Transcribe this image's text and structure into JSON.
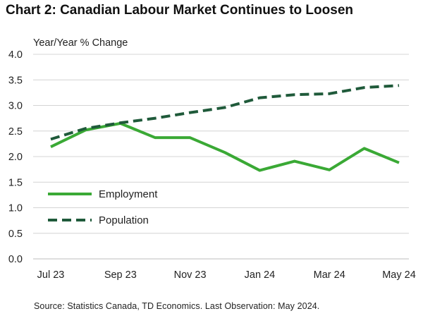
{
  "title": "Chart 2: Canadian Labour Market Continues to Loosen",
  "source": "Source: Statistics Canada, TD Economics. Last Observation: May 2024.",
  "chart_data": {
    "type": "line",
    "title": "Chart 2: Canadian Labour Market Continues to Loosen",
    "ylabel": "Year/Year % Change",
    "xlabel": "",
    "ylim": [
      0,
      4
    ],
    "y_ticks": [
      "0.0",
      "0.5",
      "1.0",
      "1.5",
      "2.0",
      "2.5",
      "3.0",
      "3.5",
      "4.0"
    ],
    "x": [
      "Jul 23",
      "Aug 23",
      "Sep 23",
      "Oct 23",
      "Nov 23",
      "Dec 23",
      "Jan 24",
      "Feb 24",
      "Mar 24",
      "Apr 24",
      "May 24"
    ],
    "x_tick_labels": [
      "Jul 23",
      "Sep 23",
      "Nov 23",
      "Jan 24",
      "Mar 24",
      "May 24"
    ],
    "grid": "horizontal",
    "legend_position": "lower-left",
    "series": [
      {
        "name": "Employment",
        "style": "solid",
        "color": "#3aa935",
        "values": [
          2.19,
          2.52,
          2.65,
          2.37,
          2.37,
          2.08,
          1.73,
          1.91,
          1.74,
          2.16,
          1.88
        ]
      },
      {
        "name": "Population",
        "style": "dashed",
        "color": "#1f5a3a",
        "values": [
          2.34,
          2.55,
          2.66,
          2.75,
          2.86,
          2.96,
          3.15,
          3.21,
          3.23,
          3.35,
          3.39
        ]
      }
    ]
  }
}
